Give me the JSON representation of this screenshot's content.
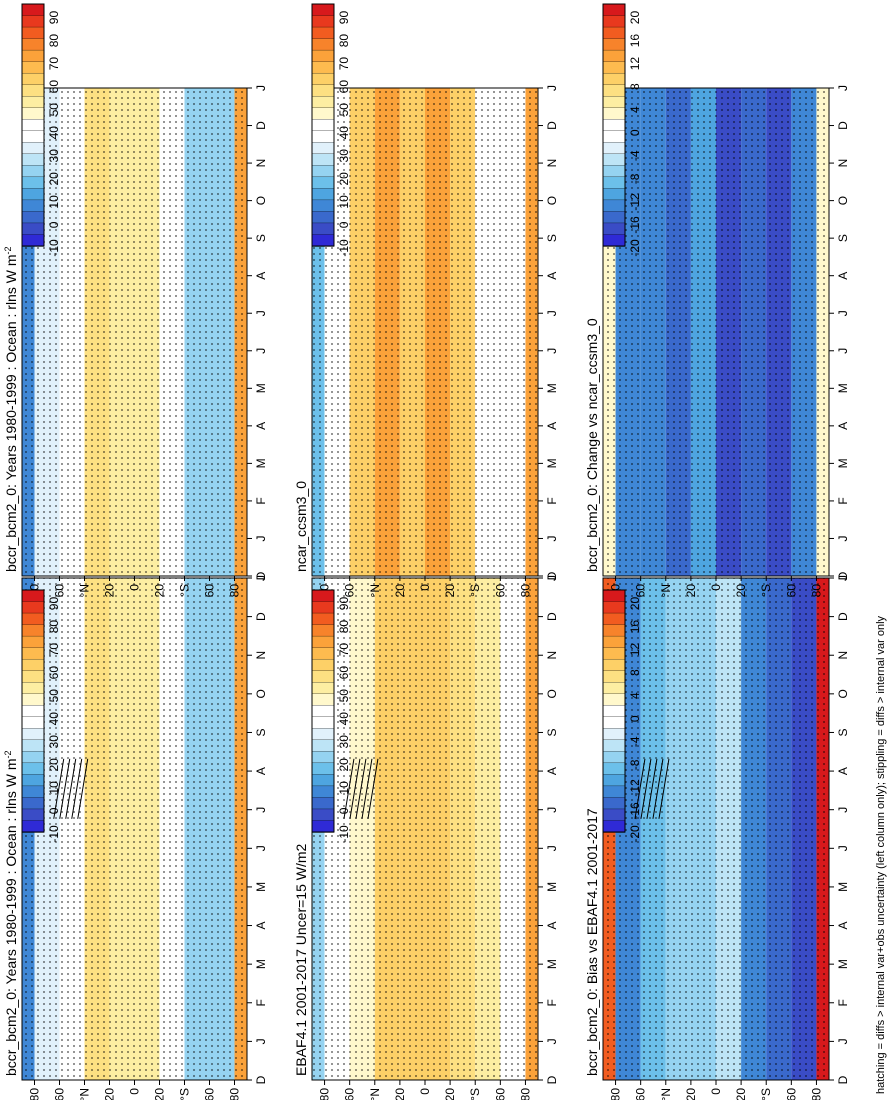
{
  "footer": "hatching = diffs > internal var+obs uncertainty (left column only); stippling = diffs > internal var only",
  "axes": {
    "months": [
      "D",
      "J",
      "F",
      "M",
      "A",
      "M",
      "J",
      "J",
      "A",
      "S",
      "O",
      "N",
      "D",
      "J"
    ],
    "lat_labels": [
      "80",
      "60",
      "°N",
      "20",
      "0",
      "20",
      "°S",
      "60",
      "80"
    ],
    "lat_values": [
      80,
      60,
      40,
      20,
      0,
      -20,
      -40,
      -60,
      -80
    ]
  },
  "colorbars": {
    "absolute": {
      "labels": [
        "90",
        "80",
        "70",
        "60",
        "50",
        "40",
        "30",
        "20",
        "10",
        "0",
        "-10"
      ],
      "colors": [
        "#d7191c",
        "#e8391e",
        "#f25c20",
        "#f7832b",
        "#fba23a",
        "#fdbb4f",
        "#fdd067",
        "#fde082",
        "#fdeea2",
        "#fff8cc",
        "#ffffff",
        "#ffffff",
        "#e1f1fb",
        "#bde4f6",
        "#95d3f1",
        "#6cc0ea",
        "#4ea5e0",
        "#3f87d6",
        "#3a69cc",
        "#3a4cc6",
        "#2f2ad6"
      ]
    },
    "difference": {
      "labels": [
        "20",
        "16",
        "12",
        "8",
        "4",
        "0",
        "-4",
        "-8",
        "-12",
        "-16",
        "-20"
      ],
      "colors": [
        "#d7191c",
        "#e8391e",
        "#f25c20",
        "#f7832b",
        "#fba23a",
        "#fdbb4f",
        "#fdd067",
        "#fde082",
        "#fdeea2",
        "#fff8cc",
        "#ffffff",
        "#ffffff",
        "#e1f1fb",
        "#bde4f6",
        "#95d3f1",
        "#6cc0ea",
        "#4ea5e0",
        "#3f87d6",
        "#3a69cc",
        "#3a4cc6",
        "#2f2ad6"
      ]
    }
  },
  "chart_data": [
    {
      "type": "heatmap",
      "panel": "left-top",
      "title": "bccr_bcm2_0: Years 1980-1999 : Ocean : rlns W m",
      "title_superscript": "-2",
      "x": "month",
      "y": "latitude",
      "ylim": [
        -90,
        90
      ],
      "colorbar": "absolute",
      "values_range": [
        -10,
        90
      ],
      "bands": [
        [
          80,
          90,
          5
        ],
        [
          60,
          80,
          30
        ],
        [
          40,
          60,
          42
        ],
        [
          20,
          40,
          55
        ],
        [
          0,
          20,
          50
        ],
        [
          -20,
          0,
          52
        ],
        [
          -40,
          -20,
          40
        ],
        [
          -60,
          -40,
          20
        ],
        [
          -80,
          -60,
          22
        ],
        [
          -90,
          -80,
          68
        ]
      ],
      "stippling": true,
      "hatching": true
    },
    {
      "type": "heatmap",
      "panel": "right-top",
      "title": "bccr_bcm2_0: Years 1980-1999 : Ocean : rlns W m",
      "title_superscript": "-2",
      "x": "month",
      "y": "latitude",
      "ylim": [
        -90,
        90
      ],
      "colorbar": "absolute",
      "values_range": [
        -10,
        90
      ],
      "bands": [
        [
          80,
          90,
          5
        ],
        [
          60,
          80,
          30
        ],
        [
          40,
          60,
          42
        ],
        [
          20,
          40,
          55
        ],
        [
          0,
          20,
          50
        ],
        [
          -20,
          0,
          52
        ],
        [
          -40,
          -20,
          40
        ],
        [
          -60,
          -40,
          20
        ],
        [
          -80,
          -60,
          22
        ],
        [
          -90,
          -80,
          68
        ]
      ],
      "stippling": true,
      "hatching": false
    },
    {
      "type": "heatmap",
      "panel": "left-middle",
      "title": "EBAF4.1 2001-2017 Uncer=15 W/m2",
      "x": "month",
      "y": "latitude",
      "ylim": [
        -90,
        90
      ],
      "colorbar": "absolute",
      "values_range": [
        -10,
        90
      ],
      "bands": [
        [
          80,
          90,
          20
        ],
        [
          60,
          80,
          42
        ],
        [
          40,
          60,
          45
        ],
        [
          20,
          40,
          62
        ],
        [
          0,
          20,
          58
        ],
        [
          -20,
          0,
          58
        ],
        [
          -40,
          -20,
          55
        ],
        [
          -60,
          -40,
          48
        ],
        [
          -80,
          -60,
          42
        ],
        [
          -90,
          -80,
          70
        ]
      ],
      "stippling": true,
      "hatching": true
    },
    {
      "type": "heatmap",
      "panel": "right-middle",
      "title": "ncar_ccsm3_0",
      "x": "month",
      "y": "latitude",
      "ylim": [
        -90,
        90
      ],
      "colorbar": "absolute",
      "values_range": [
        -10,
        90
      ],
      "bands": [
        [
          80,
          90,
          15
        ],
        [
          60,
          80,
          42
        ],
        [
          40,
          60,
          58
        ],
        [
          20,
          40,
          72
        ],
        [
          0,
          20,
          62
        ],
        [
          -20,
          0,
          72
        ],
        [
          -40,
          -20,
          58
        ],
        [
          -60,
          -40,
          40
        ],
        [
          -80,
          -60,
          35
        ],
        [
          -90,
          -80,
          68
        ]
      ],
      "stippling": true,
      "hatching": false
    },
    {
      "type": "heatmap",
      "panel": "left-bottom",
      "title": "bccr_bcm2_0: Bias vs EBAF4.1 2001-2017",
      "x": "month",
      "y": "latitude",
      "ylim": [
        -90,
        90
      ],
      "colorbar": "difference",
      "values_range": [
        -20,
        20
      ],
      "bands": [
        [
          80,
          90,
          16
        ],
        [
          60,
          80,
          -14
        ],
        [
          40,
          60,
          -10
        ],
        [
          20,
          40,
          -8
        ],
        [
          0,
          20,
          -8
        ],
        [
          -20,
          0,
          -6
        ],
        [
          -40,
          -20,
          -14
        ],
        [
          -60,
          -40,
          -16
        ],
        [
          -80,
          -60,
          -18
        ],
        [
          -90,
          -80,
          20
        ]
      ],
      "stippling": true,
      "hatching": true
    },
    {
      "type": "heatmap",
      "panel": "right-bottom",
      "title": "bccr_bcm2_0: Change vs ncar_ccsm3_0",
      "x": "month",
      "y": "latitude",
      "ylim": [
        -90,
        90
      ],
      "colorbar": "difference",
      "values_range": [
        -20,
        20
      ],
      "bands": [
        [
          80,
          90,
          2
        ],
        [
          60,
          80,
          -14
        ],
        [
          40,
          60,
          -14
        ],
        [
          20,
          40,
          -16
        ],
        [
          0,
          20,
          -12
        ],
        [
          -20,
          0,
          -18
        ],
        [
          -40,
          -20,
          -16
        ],
        [
          -60,
          -40,
          -18
        ],
        [
          -80,
          -60,
          -13
        ],
        [
          -90,
          -80,
          2
        ]
      ],
      "stippling": true,
      "hatching": false
    }
  ]
}
